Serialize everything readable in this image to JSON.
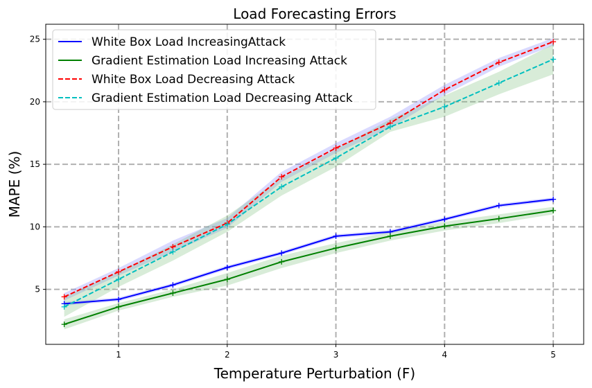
{
  "chart_data": {
    "type": "line",
    "title": "Load Forecasting Errors",
    "xlabel": "Temperature Perturbation (F)",
    "ylabel": "MAPE (%)",
    "xlim": [
      0.33,
      5.28
    ],
    "ylim": [
      0.6,
      26.2
    ],
    "xticks": [
      1,
      2,
      3,
      4,
      5
    ],
    "yticks": [
      5,
      10,
      15,
      20,
      25
    ],
    "grid": true,
    "legend_position": "top-left",
    "x": [
      0.5,
      1.0,
      1.5,
      2.0,
      2.5,
      3.0,
      3.5,
      4.0,
      4.5,
      5.0
    ],
    "series": [
      {
        "name": "White Box Load IncreasingAttack",
        "color": "#0000ff",
        "linestyle": "solid",
        "values": [
          3.85,
          4.2,
          5.35,
          6.75,
          7.9,
          9.25,
          9.6,
          10.6,
          11.7,
          12.2
        ],
        "band_lower": [
          3.7,
          4.05,
          5.2,
          6.6,
          7.75,
          9.1,
          9.45,
          10.45,
          11.55,
          12.05
        ],
        "band_upper": [
          4.0,
          4.35,
          5.5,
          6.9,
          8.05,
          9.4,
          9.75,
          10.75,
          11.85,
          12.35
        ]
      },
      {
        "name": "Gradient Estimation Load Increasing Attack",
        "color": "#008000",
        "linestyle": "solid",
        "values": [
          2.2,
          3.6,
          4.7,
          5.8,
          7.2,
          8.3,
          9.25,
          10.05,
          10.65,
          11.3
        ],
        "band_lower": [
          1.8,
          3.3,
          4.4,
          5.3,
          6.7,
          7.9,
          8.9,
          9.7,
          10.3,
          11.0
        ],
        "band_upper": [
          2.6,
          3.9,
          5.0,
          6.3,
          7.7,
          8.7,
          9.6,
          10.4,
          11.0,
          11.6
        ]
      },
      {
        "name": "White Box Load Decreasing Attack",
        "color": "#ff0000",
        "linestyle": "dashed",
        "values": [
          4.4,
          6.4,
          8.4,
          10.3,
          14.0,
          16.3,
          18.3,
          20.95,
          23.15,
          24.8
        ],
        "band_lower": [
          4.1,
          6.1,
          8.0,
          9.9,
          13.6,
          15.9,
          17.9,
          20.55,
          22.8,
          24.5
        ],
        "band_upper": [
          4.7,
          6.7,
          8.9,
          10.7,
          14.4,
          16.7,
          18.8,
          21.35,
          23.5,
          25.1
        ]
      },
      {
        "name": "Gradient Estimation Load Decreasing Attack",
        "color": "#00bfbf",
        "linestyle": "dashed",
        "values": [
          3.6,
          5.8,
          8.0,
          10.2,
          13.2,
          15.5,
          18.0,
          19.6,
          21.5,
          23.4
        ],
        "band_lower": [
          2.8,
          5.2,
          7.3,
          9.6,
          12.5,
          14.8,
          17.6,
          18.8,
          20.6,
          22.2
        ],
        "band_upper": [
          4.4,
          6.4,
          8.6,
          10.9,
          13.9,
          16.2,
          18.6,
          20.5,
          22.4,
          24.6
        ]
      }
    ]
  }
}
